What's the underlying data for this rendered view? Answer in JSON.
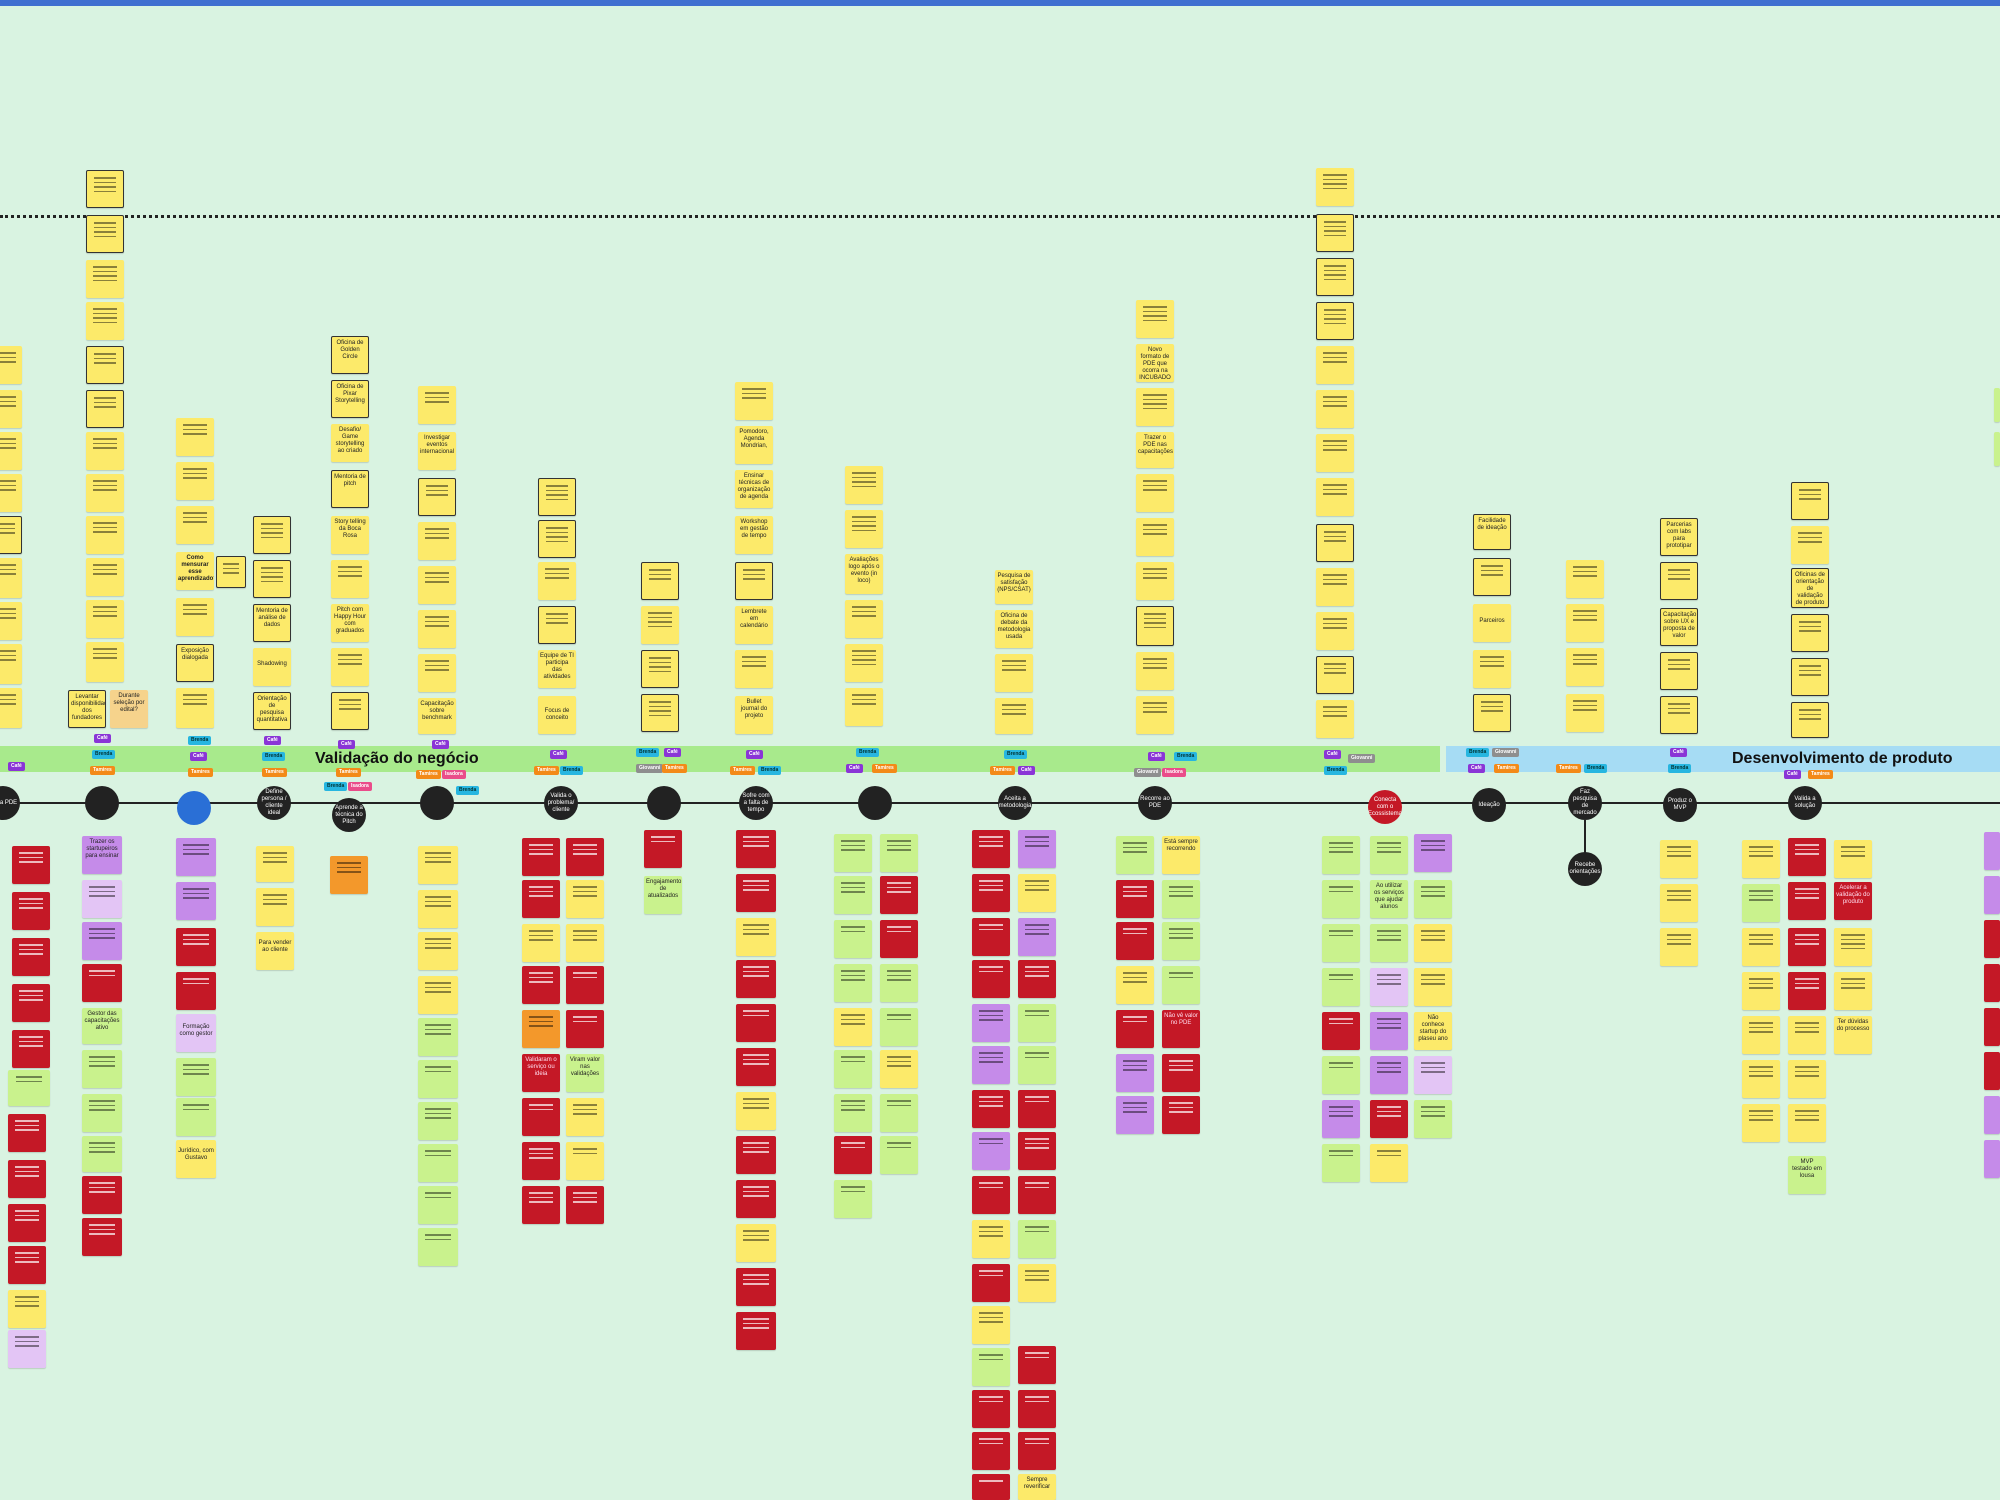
{
  "board": {
    "phases": [
      {
        "label": "Validação do negócio"
      },
      {
        "label": "Desenvolvimento de produto"
      }
    ],
    "nodes": [
      {
        "label": "ência PDE"
      },
      {
        "label": ""
      },
      {
        "label": ""
      },
      {
        "label": "Define persona / cliente ideal"
      },
      {
        "label": "Aprende a técnica do Pitch"
      },
      {
        "label": ""
      },
      {
        "label": "Valida o problema/ cliente"
      },
      {
        "label": ""
      },
      {
        "label": "Sofre com a falta de tempo"
      },
      {
        "label": ""
      },
      {
        "label": "Aceita a metodologia"
      },
      {
        "label": "Recorre ao PDE"
      },
      {
        "label": "Conecta com o Ecossistema"
      },
      {
        "label": "Ideação"
      },
      {
        "label": "Faz pesquisa de mercado"
      },
      {
        "label": "Produz o MVP"
      },
      {
        "label": "Valida a solução"
      },
      {
        "label": "Recebe orientações"
      }
    ],
    "notes": {
      "a1": "Durante seleção por edital?",
      "a2": "Levantar disponibilidade dos fundadores",
      "a3": "Como mensurar esse aprendizado?",
      "a4": "Exposição dialogada",
      "a5": "Mentoria de análise de dados",
      "a6": "Shadowing",
      "a7": "Orientação de pesquisa quantitativa",
      "a8": "Oficina de Golden Circle",
      "a9": "Oficina de Pixar Storytelling",
      "a10": "Desafio/ Game storytelling ao criado",
      "a11": "Mentoria de pitch",
      "a12": "Story telling da Boca Rosa",
      "a13": "Pitch com Happy Hour com graduados",
      "a14": "Investigar eventos internacional",
      "a15": "Capacitação sobre benchmark",
      "a16": "Equipe de TI participa das atividades",
      "a17": "Focus de conceito",
      "a18": "Pomodoro, Agenda Mondrian,",
      "a19": "Ensinar técnicas de organização de agenda",
      "a20": "Workshop em gestão de tempo",
      "a21": "Lembrete em calendário",
      "a22": "Bullet journal do projeto",
      "a23": "Avaliações logo após o evento (in loco)",
      "a24": "Pesquisa de satisfação (NPS/CSAT)",
      "a25": "Oficina de debate da metodologia usada",
      "a26": "Novo formato de PDE que ocorra na INCUBADO",
      "a27": "Trazer o PDE nas capacitações",
      "a28": "Facilidade de ideação",
      "a29": "Parceiros",
      "a30": "Parcerias com labs para prototipar",
      "a31": "Capacitação sobre UX e proposta de valor",
      "a32": "Oficinas de orientação de validação de produto",
      "b1": "Trazer os startupeiros para ensinar",
      "b2": "Gestor das capacitações ativo",
      "b3": "Formação como gestor",
      "b4": "Jurídico, com Gustavo",
      "b5": "Para vender ao cliente",
      "b6": "Validaram o serviço ou ideia",
      "b7": "Viram valor nas validações",
      "b8": "Não vê valor no PDE",
      "b9": "Está sempre recorrendo",
      "b10": "Acelerar a validação do produto",
      "b11": "Ter dúvidas do processo",
      "b12": "MVP testado em lousa",
      "b13": "Sempre reverificar",
      "b14": "Engajamento de atualizados",
      "b15": "Não conhece startup do plaseu ano",
      "b16": "Ao utilizar os serviços que ajudar alunos"
    },
    "tags": {
      "cafe": "Café",
      "brenda": "Brenda",
      "tamires": "Tamires",
      "giovanni": "Giovanni",
      "isadora": "Isadora"
    }
  }
}
